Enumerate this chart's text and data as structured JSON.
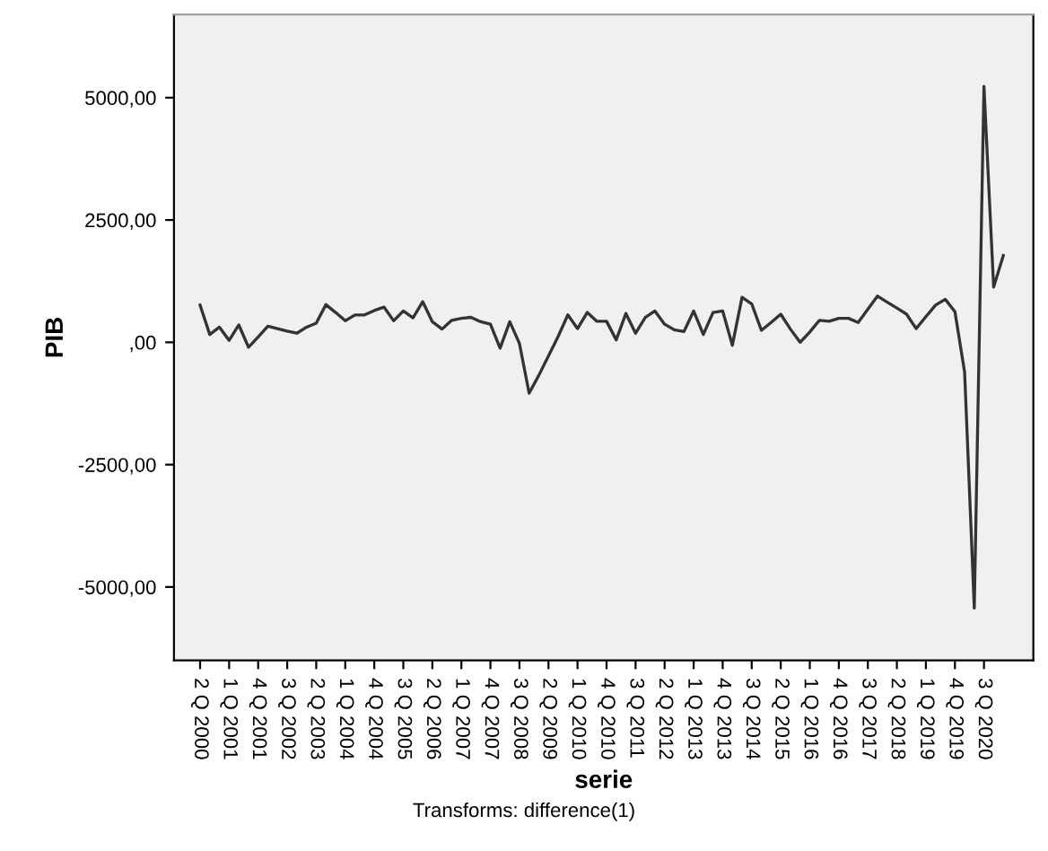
{
  "chart_data": {
    "type": "line",
    "xlabel": "serie",
    "ylabel": "PIB",
    "annotations": [
      "Transforms: difference(1)"
    ],
    "categories": [
      "2 Q 2000",
      null,
      null,
      "1 Q 2001",
      null,
      null,
      "4 Q 2001",
      null,
      null,
      "3 Q 2002",
      null,
      null,
      "2 Q 2003",
      null,
      null,
      "1 Q 2004",
      null,
      null,
      "4 Q 2004",
      null,
      null,
      "3 Q 2005",
      null,
      null,
      "2 Q 2006",
      null,
      null,
      "1 Q 2007",
      null,
      null,
      "4 Q 2007",
      null,
      null,
      "3 Q 2008",
      null,
      null,
      "2 Q 2009",
      null,
      null,
      "1 Q 2010",
      null,
      null,
      "4 Q 2010",
      null,
      null,
      "3 Q 2011",
      null,
      null,
      "2 Q 2012",
      null,
      null,
      "1 Q 2013",
      null,
      null,
      "4 Q 2013",
      null,
      null,
      "3 Q 2014",
      null,
      null,
      "2 Q 2015",
      null,
      null,
      "1 Q 2016",
      null,
      null,
      "4 Q 2016",
      null,
      null,
      "3 Q 2017",
      null,
      null,
      "2 Q 2018",
      null,
      null,
      "1 Q 2019",
      null,
      null,
      "4 Q 2019",
      null,
      null,
      "3 Q 2020",
      null,
      null
    ],
    "series": [
      {
        "color": "#333333",
        "values": [
          760,
          160,
          310,
          40,
          355,
          -100,
          110,
          330,
          280,
          230,
          185,
          310,
          390,
          770,
          610,
          440,
          560,
          560,
          650,
          720,
          440,
          640,
          500,
          830,
          420,
          270,
          450,
          490,
          510,
          420,
          370,
          -120,
          420,
          -25,
          -1040,
          -675,
          -280,
          120,
          560,
          280,
          610,
          430,
          430,
          50,
          590,
          185,
          510,
          640,
          370,
          255,
          220,
          640,
          160,
          610,
          640,
          -60,
          920,
          785,
          245,
          405,
          575,
          270,
          0,
          210,
          450,
          430,
          490,
          490,
          405,
          675,
          945,
          820,
          700,
          575,
          280,
          525,
          760,
          880,
          625,
          -610,
          -5430,
          5230,
          1130,
          1775
        ]
      }
    ],
    "ylim": [
      -6500,
      6700
    ],
    "yticks": [
      {
        "value": -5000,
        "label": "-5000,00"
      },
      {
        "value": -2500,
        "label": "-2500,00"
      },
      {
        "value": 0,
        "label": ",00"
      },
      {
        "value": 2500,
        "label": "2500,00"
      },
      {
        "value": 5000,
        "label": "5000,00"
      }
    ],
    "grid": false,
    "marker": "none",
    "line_style": "solid"
  }
}
